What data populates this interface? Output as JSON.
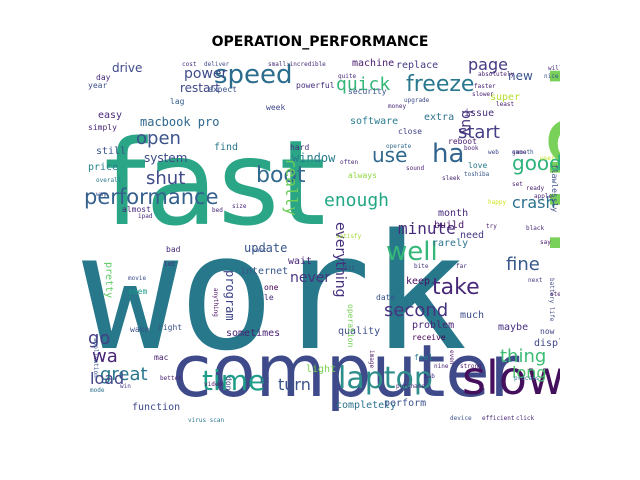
{
  "title": "OPERATION_PERFORMANCE",
  "words": [
    {
      "text": "work",
      "color": "#26788a"
    },
    {
      "text": "fast",
      "color": "#2aa585"
    },
    {
      "text": "run",
      "color": "#79d15a"
    },
    {
      "text": "computer",
      "color": "#3e4a89"
    },
    {
      "text": "slow",
      "color": "#440f5d"
    },
    {
      "text": "laptop",
      "color": "#2e8e8c"
    },
    {
      "text": "time",
      "color": "#1f9e89"
    },
    {
      "text": "speed",
      "color": "#2c6d8e"
    },
    {
      "text": "well",
      "color": "#34b778"
    },
    {
      "text": "performance",
      "color": "#35608d"
    },
    {
      "text": "freeze",
      "color": "#2a788e"
    },
    {
      "text": "ha",
      "color": "#32648e"
    },
    {
      "text": "boot",
      "color": "#31688e"
    },
    {
      "text": "take",
      "color": "#482878"
    },
    {
      "text": "quick",
      "color": "#35b779"
    },
    {
      "text": "enough",
      "color": "#22a785"
    },
    {
      "text": "use",
      "color": "#31688e"
    },
    {
      "text": "good",
      "color": "#2fb47c"
    },
    {
      "text": "screen",
      "color": "#26828e"
    },
    {
      "text": "start",
      "color": "#433e85"
    },
    {
      "text": "open",
      "color": "#3b528b"
    },
    {
      "text": "really",
      "color": "#6ccd5a"
    },
    {
      "text": "shut",
      "color": "#3e4a89"
    },
    {
      "text": "great",
      "color": "#2a778e"
    },
    {
      "text": "minute",
      "color": "#472c7a"
    },
    {
      "text": "second",
      "color": "#46337f"
    },
    {
      "text": "crash",
      "color": "#2c728e"
    },
    {
      "text": "thing",
      "color": "#3dbc74"
    },
    {
      "text": "fine",
      "color": "#38588c"
    },
    {
      "text": "long",
      "color": "#4ac16d"
    },
    {
      "text": "go",
      "color": "#433e85"
    },
    {
      "text": "wa",
      "color": "#482475"
    },
    {
      "text": "load",
      "color": "#414487"
    },
    {
      "text": "turn",
      "color": "#3b528b"
    },
    {
      "text": "page",
      "color": "#443983"
    },
    {
      "text": "power",
      "color": "#3e4c8a"
    },
    {
      "text": "buy",
      "color": "#46327e"
    },
    {
      "text": "new",
      "color": "#3a548c"
    },
    {
      "text": "everything",
      "color": "#46307e"
    },
    {
      "text": "never",
      "color": "#46337f"
    },
    {
      "text": "update",
      "color": "#39568c"
    },
    {
      "text": "program",
      "color": "#404588"
    },
    {
      "text": "macbook pro",
      "color": "#30688e"
    },
    {
      "text": "restart",
      "color": "#3f4889"
    },
    {
      "text": "system",
      "color": "#3d4d8a"
    },
    {
      "text": "drive",
      "color": "#3e4989"
    },
    {
      "text": "window",
      "color": "#287d8e"
    },
    {
      "text": "software",
      "color": "#297b8e"
    },
    {
      "text": "replace",
      "color": "#443a83"
    },
    {
      "text": "machine",
      "color": "#481b6d"
    },
    {
      "text": "extra",
      "color": "#2d708e"
    },
    {
      "text": "super",
      "color": "#b5de2b"
    },
    {
      "text": "issue",
      "color": "#472d7b"
    },
    {
      "text": "problem",
      "color": "#482374"
    },
    {
      "text": "quality",
      "color": "#3c4f8a"
    },
    {
      "text": "sometimes",
      "color": "#482173"
    },
    {
      "text": "display",
      "color": "#3f4788"
    },
    {
      "text": "maybe",
      "color": "#462f7e"
    },
    {
      "text": "wait",
      "color": "#482677"
    },
    {
      "text": "internet",
      "color": "#38588c"
    },
    {
      "text": "keep",
      "color": "#471063"
    },
    {
      "text": "much",
      "color": "#3d4e8a"
    },
    {
      "text": "need",
      "color": "#443983"
    },
    {
      "text": "build",
      "color": "#481467"
    },
    {
      "text": "month",
      "color": "#472a7a"
    },
    {
      "text": "rarely",
      "color": "#2c738e"
    },
    {
      "text": "light",
      "color": "#7ad151"
    },
    {
      "text": "perform",
      "color": "#3b528b"
    },
    {
      "text": "completely",
      "color": "#2c728e"
    },
    {
      "text": "function",
      "color": "#3f4889"
    },
    {
      "text": "find",
      "color": "#2a768e"
    },
    {
      "text": "hard",
      "color": "#472f7d"
    },
    {
      "text": "price",
      "color": "#25848e"
    },
    {
      "text": "still",
      "color": "#3a538b"
    },
    {
      "text": "easy",
      "color": "#472a7a"
    },
    {
      "text": "simply",
      "color": "#482576"
    },
    {
      "text": "year",
      "color": "#3b518b"
    },
    {
      "text": "day",
      "color": "#472c7a"
    },
    {
      "text": "lag",
      "color": "#365d8d"
    },
    {
      "text": "expect",
      "color": "#3b528b"
    },
    {
      "text": "powerful",
      "color": "#472d7b"
    },
    {
      "text": "week",
      "color": "#3f4889"
    },
    {
      "text": "security",
      "color": "#3b518b"
    },
    {
      "text": "close",
      "color": "#414287"
    },
    {
      "text": "reboot",
      "color": "#481c6e"
    },
    {
      "text": "love",
      "color": "#297a8e"
    },
    {
      "text": "always",
      "color": "#8fd744"
    },
    {
      "text": "often",
      "color": "#482979"
    },
    {
      "text": "sound",
      "color": "#481f70"
    },
    {
      "text": "sleek",
      "color": "#482576"
    },
    {
      "text": "happy",
      "color": "#d2e21b"
    },
    {
      "text": "smooth",
      "color": "#39568c"
    },
    {
      "text": "flawlessly",
      "color": "#3c4f8a"
    },
    {
      "text": "least",
      "color": "#482173"
    },
    {
      "text": "will",
      "color": "#472d7b"
    },
    {
      "text": "nice",
      "color": "#3a548c"
    },
    {
      "text": "next",
      "color": "#433e85"
    },
    {
      "text": "say",
      "color": "#481467"
    },
    {
      "text": "receive",
      "color": "#440154"
    },
    {
      "text": "now",
      "color": "#414487"
    },
    {
      "text": "almost",
      "color": "#472a7a"
    },
    {
      "text": "bad",
      "color": "#482878"
    },
    {
      "text": "pretty",
      "color": "#5ec962"
    },
    {
      "text": "application",
      "color": "#39568c"
    },
    {
      "text": "keyboard",
      "color": "#2a788e"
    },
    {
      "text": "anything",
      "color": "#460a5d"
    },
    {
      "text": "movie",
      "color": "#3e4a89"
    },
    {
      "text": "seem",
      "color": "#1f9a8a"
    },
    {
      "text": "wake",
      "color": "#3b528b"
    },
    {
      "text": "right",
      "color": "#3b528b"
    },
    {
      "text": "mac",
      "color": "#482475"
    },
    {
      "text": "mode",
      "color": "#2d708e"
    },
    {
      "text": "win",
      "color": "#433d84"
    },
    {
      "text": "better",
      "color": "#482576"
    },
    {
      "text": "video",
      "color": "#48186a"
    },
    {
      "text": "pc",
      "color": "#3b528b"
    },
    {
      "text": "don",
      "color": "#3e4a89"
    },
    {
      "text": "virus scan",
      "color": "#2a788e"
    },
    {
      "text": "one",
      "color": "#440154"
    },
    {
      "text": "le",
      "color": "#482878"
    },
    {
      "text": "operation",
      "color": "#75d054"
    },
    {
      "text": "date",
      "color": "#3b528b"
    },
    {
      "text": "feel",
      "color": "#26818e"
    },
    {
      "text": "even",
      "color": "#481668"
    },
    {
      "text": "purchase",
      "color": "#482576"
    },
    {
      "text": "image",
      "color": "#48186a"
    },
    {
      "text": "tab",
      "color": "#472a7a"
    },
    {
      "text": "strong",
      "color": "#48186a"
    },
    {
      "text": "nine",
      "color": "#482374"
    },
    {
      "text": "device",
      "color": "#3b528b"
    },
    {
      "text": "click",
      "color": "#472a7a"
    },
    {
      "text": "efficient",
      "color": "#482475"
    },
    {
      "text": "process",
      "color": "#2e6e8e"
    },
    {
      "text": "battery life",
      "color": "#3e4a89"
    },
    {
      "text": "steady",
      "color": "#481b6d"
    },
    {
      "text": "user",
      "color": "#c8e020"
    },
    {
      "text": "game",
      "color": "#472d7b"
    },
    {
      "text": "web",
      "color": "#3e4989"
    },
    {
      "text": "book",
      "color": "#482576"
    },
    {
      "text": "toshiba",
      "color": "#38588c"
    },
    {
      "text": "satisfy",
      "color": "#9fda3a"
    },
    {
      "text": "bite",
      "color": "#46337f"
    },
    {
      "text": "far",
      "color": "#482979"
    },
    {
      "text": "small:incredible",
      "color": "#472c7a"
    },
    {
      "text": "operate",
      "color": "#30698e"
    },
    {
      "text": "money",
      "color": "#482878"
    },
    {
      "text": "upgrade",
      "color": "#3e4a89"
    },
    {
      "text": "faster",
      "color": "#482173"
    },
    {
      "text": "quite",
      "color": "#472a7a"
    },
    {
      "text": "absolutely",
      "color": "#481f70"
    },
    {
      "text": "deliver",
      "color": "#3e4a89"
    },
    {
      "text": "cost",
      "color": "#472c7a"
    },
    {
      "text": "overall",
      "color": "#2a788e"
    },
    {
      "text": "way",
      "color": "#3b518b"
    },
    {
      "text": "try",
      "color": "#482173"
    },
    {
      "text": "black",
      "color": "#472d7b"
    },
    {
      "text": "ready",
      "color": "#481f70"
    },
    {
      "text": "size",
      "color": "#482576"
    },
    {
      "text": "want",
      "color": "#3b528b"
    },
    {
      "text": "ipad",
      "color": "#472a7a"
    },
    {
      "text": "fit",
      "color": "#3e4989"
    },
    {
      "text": "slower",
      "color": "#482475"
    },
    {
      "text": "set",
      "color": "#481f70"
    },
    {
      "text": "lot",
      "color": "#472a7a"
    },
    {
      "text": "apple",
      "color": "#482878"
    },
    {
      "text": "bed",
      "color": "#482576"
    }
  ]
}
